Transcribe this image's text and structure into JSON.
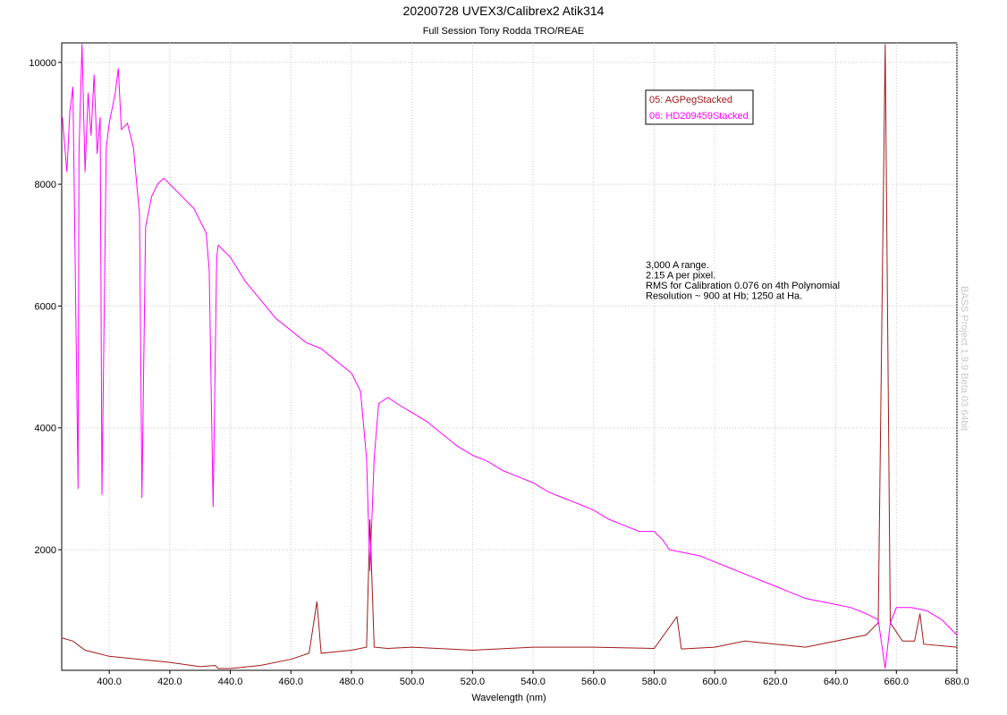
{
  "chart_data": {
    "type": "line",
    "title": "20200728 UVEX3/Calibrex2 Atik314",
    "subtitle": "Full Session Tony Rodda TRO/REAE",
    "x_label": "Wavelength (nm)",
    "watermark": "BASS Project 1.9.9 Beta 03 64bit",
    "annotation": [
      "3,000 A range.",
      "2.15 A per pixel.",
      "RMS  for Calibration 0.076 on 4th Polynomial",
      "Resolution ~ 900 at Hb; 1250 at Ha."
    ],
    "xlim": [
      384.3,
      680
    ],
    "ylim": [
      20,
      10320
    ],
    "xticks": [
      {
        "value": 400,
        "label": "400.0"
      },
      {
        "value": 420,
        "label": "420.0"
      },
      {
        "value": 440,
        "label": "440.0"
      },
      {
        "value": 460,
        "label": "460.0"
      },
      {
        "value": 480,
        "label": "480.0"
      },
      {
        "value": 500,
        "label": "500.0"
      },
      {
        "value": 520,
        "label": "520.0"
      },
      {
        "value": 540,
        "label": "540.0"
      },
      {
        "value": 560,
        "label": "560.0"
      },
      {
        "value": 580,
        "label": "580.0"
      },
      {
        "value": 600,
        "label": "600.0"
      },
      {
        "value": 620,
        "label": "620.0"
      },
      {
        "value": 640,
        "label": "640.0"
      },
      {
        "value": 660,
        "label": "660.0"
      },
      {
        "value": 680,
        "label": "680.0"
      }
    ],
    "yticks": [
      2000,
      4000,
      6000,
      8000,
      10000
    ],
    "grid": true,
    "legend": "top-right",
    "series": [
      {
        "name": "05: AGPegStacked",
        "color": "#a01818",
        "x": [
          384.5,
          388,
          392,
          396,
          400,
          410,
          420,
          430,
          435,
          436,
          440,
          450,
          460,
          466,
          468.6,
          470,
          480,
          485,
          486.1,
          487.5,
          492,
          500,
          520,
          540,
          560,
          580,
          587.5,
          589,
          600,
          610,
          620,
          630,
          640,
          650,
          654,
          656.3,
          658,
          662,
          666,
          667.8,
          669,
          680
        ],
        "values": [
          550,
          500,
          350,
          300,
          250,
          200,
          150,
          80,
          100,
          50,
          50,
          100,
          200,
          300,
          1150,
          300,
          350,
          400,
          2500,
          400,
          380,
          400,
          350,
          400,
          400,
          380,
          900,
          370,
          400,
          500,
          450,
          400,
          500,
          600,
          800,
          10300,
          800,
          500,
          500,
          950,
          450,
          400
        ]
      },
      {
        "name": "06: HD209459Stacked",
        "color": "#ff00ff",
        "x": [
          384.5,
          385,
          386,
          387,
          388,
          389.7,
          390,
          391,
          392,
          393,
          394,
          395,
          396,
          397,
          397.6,
          399,
          400,
          402,
          403,
          404,
          406,
          408,
          410,
          410.8,
          412,
          414,
          416,
          418,
          420,
          424,
          428,
          430,
          432,
          433,
          434.3,
          435.5,
          436,
          438,
          440,
          445,
          450,
          455,
          460,
          465,
          470,
          475,
          480,
          483,
          485,
          486.1,
          487.5,
          489,
          492,
          495,
          500,
          505,
          510,
          515,
          520,
          525,
          530,
          535,
          540,
          545,
          550,
          555,
          560,
          565,
          570,
          575,
          580,
          583,
          585,
          590,
          595,
          600,
          605,
          610,
          615,
          620,
          625,
          630,
          635,
          640,
          645,
          650,
          654,
          656.3,
          658,
          660,
          665,
          670,
          675,
          680
        ],
        "values": [
          9100,
          8800,
          8200,
          9200,
          9600,
          3000,
          8500,
          10300,
          8200,
          9500,
          8800,
          9800,
          8500,
          9100,
          2900,
          8600,
          9000,
          9500,
          9900,
          8900,
          9000,
          8600,
          7500,
          2850,
          7300,
          7800,
          8000,
          8100,
          8000,
          7800,
          7600,
          7400,
          7200,
          6600,
          2700,
          6800,
          7000,
          6900,
          6800,
          6400,
          6100,
          5800,
          5600,
          5400,
          5300,
          5100,
          4900,
          4600,
          3500,
          1650,
          3500,
          4400,
          4500,
          4400,
          4250,
          4100,
          3900,
          3700,
          3550,
          3450,
          3300,
          3200,
          3100,
          2950,
          2850,
          2750,
          2650,
          2500,
          2400,
          2300,
          2300,
          2150,
          2000,
          1950,
          1900,
          1800,
          1700,
          1600,
          1500,
          1400,
          1300,
          1200,
          1150,
          1100,
          1050,
          950,
          850,
          50,
          800,
          1050,
          1050,
          1000,
          850,
          600
        ]
      }
    ]
  }
}
